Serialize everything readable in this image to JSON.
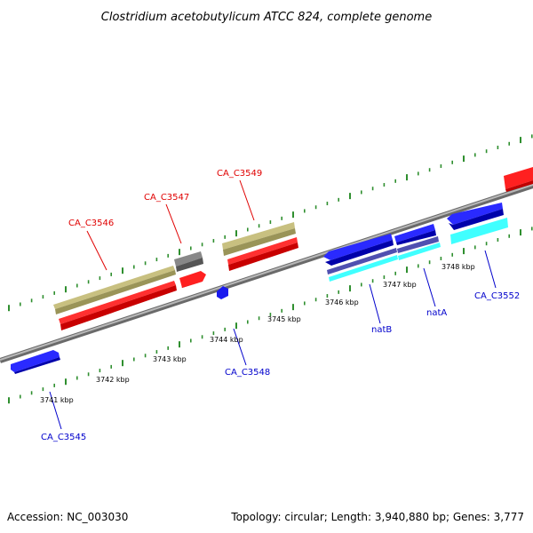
{
  "title": "Clostridium acetobutylicum ATCC 824, complete genome",
  "accession": "Accession: NC_003030",
  "topology": "Topology: circular; Length: 3,940,880 bp; Genes: 3,777",
  "colors": {
    "backbone": "#909090",
    "tick": "#2f8f2f",
    "forward_label": "#e00000",
    "reverse_label": "#0000cc",
    "red": "#ee0000",
    "blue": "#1a1aee",
    "khaki": "#b8b070",
    "gray": "#666666",
    "cyan": "#00eeee",
    "purple": "#4444aa"
  },
  "kbp_labels": [
    "3741 kbp",
    "3742 kbp",
    "3743 kbp",
    "3744 kbp",
    "3745 kbp",
    "3746 kbp",
    "3747 kbp",
    "3748 kbp"
  ],
  "forward_genes": [
    {
      "label": "CA_C3546",
      "color": "khaki"
    },
    {
      "label": "CA_C3547",
      "color": "gray"
    },
    {
      "label": "CA_C3549",
      "color": "khaki"
    }
  ],
  "reverse_genes": [
    {
      "label": "CA_C3545",
      "color": "blue"
    },
    {
      "label": "CA_C3548",
      "color": "blue"
    },
    {
      "label": "natB",
      "color": "blue"
    },
    {
      "label": "natA",
      "color": "blue"
    },
    {
      "label": "CA_C3552",
      "color": "blue"
    }
  ]
}
